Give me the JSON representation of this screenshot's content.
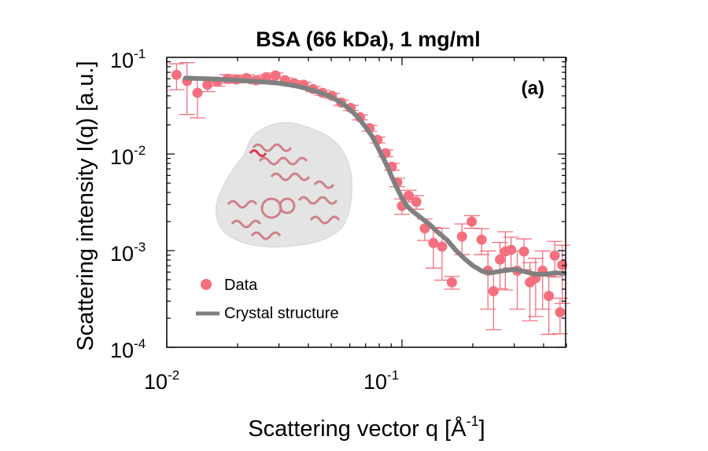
{
  "chart_data": {
    "type": "scatter",
    "title": "BSA (66 kDa), 1 mg/ml",
    "panel_label": "(a)",
    "xlabel": "Scattering vector q [Å",
    "xlabel_sup": "-1",
    "xlabel_end": "]",
    "ylabel": "Scattering intensity I(q) [a.u.]",
    "xscale": "log",
    "yscale": "log",
    "xlim": [
      0.01,
      0.5
    ],
    "ylim": [
      0.0001,
      0.1
    ],
    "xticks": [
      {
        "base": "10",
        "exp": "-2",
        "value": 0.01
      },
      {
        "base": "10",
        "exp": "-1",
        "value": 0.1
      }
    ],
    "yticks": [
      {
        "base": "10",
        "exp": "-1",
        "value": 0.1
      },
      {
        "base": "10",
        "exp": "-2",
        "value": 0.01
      },
      {
        "base": "10",
        "exp": "-3",
        "value": 0.001
      },
      {
        "base": "10",
        "exp": "-4",
        "value": 0.0001
      }
    ],
    "grid": false,
    "legend": {
      "placement": "lower-left",
      "entries": [
        {
          "label": "Data",
          "marker": "circle",
          "color": "#f4707e"
        },
        {
          "label": "Crystal structure",
          "marker": "line",
          "color": "#808080"
        }
      ]
    },
    "inset": "BSA crystal structure (ribbon) within SAXS envelope",
    "series": [
      {
        "name": "Data",
        "color": "#f4707e",
        "points": [
          {
            "q": 0.011,
            "I": 0.066,
            "err": 0.3
          },
          {
            "q": 0.0122,
            "I": 0.057,
            "err": 0.55
          },
          {
            "q": 0.0135,
            "I": 0.043,
            "err": 0.45
          },
          {
            "q": 0.0149,
            "I": 0.052,
            "err": 0.15
          },
          {
            "q": 0.0164,
            "I": 0.056,
            "err": 0.1
          },
          {
            "q": 0.0181,
            "I": 0.06,
            "err": 0.1
          },
          {
            "q": 0.0198,
            "I": 0.059,
            "err": 0.08
          },
          {
            "q": 0.0218,
            "I": 0.061,
            "err": 0.08
          },
          {
            "q": 0.024,
            "I": 0.058,
            "err": 0.08
          },
          {
            "q": 0.0264,
            "I": 0.062,
            "err": 0.06
          },
          {
            "q": 0.029,
            "I": 0.065,
            "err": 0.06
          },
          {
            "q": 0.0318,
            "I": 0.058,
            "err": 0.06
          },
          {
            "q": 0.0348,
            "I": 0.054,
            "err": 0.06
          },
          {
            "q": 0.0382,
            "I": 0.052,
            "err": 0.06
          },
          {
            "q": 0.0419,
            "I": 0.047,
            "err": 0.06
          },
          {
            "q": 0.0459,
            "I": 0.043,
            "err": 0.06
          },
          {
            "q": 0.0504,
            "I": 0.04,
            "err": 0.06
          },
          {
            "q": 0.0552,
            "I": 0.034,
            "err": 0.06
          },
          {
            "q": 0.0605,
            "I": 0.03,
            "err": 0.06
          },
          {
            "q": 0.0663,
            "I": 0.024,
            "err": 0.06
          },
          {
            "q": 0.0727,
            "I": 0.0185,
            "err": 0.07
          },
          {
            "q": 0.0787,
            "I": 0.014,
            "err": 0.07
          },
          {
            "q": 0.0851,
            "I": 0.0102,
            "err": 0.08
          },
          {
            "q": 0.0905,
            "I": 0.0074,
            "err": 0.08
          },
          {
            "q": 0.0954,
            "I": 0.0051,
            "err": 0.1
          },
          {
            "q": 0.1,
            "I": 0.0029,
            "err": 0.18
          },
          {
            "q": 0.1068,
            "I": 0.0037,
            "err": 0.14
          },
          {
            "q": 0.115,
            "I": 0.0032,
            "err": 0.16
          },
          {
            "q": 0.125,
            "I": 0.0017,
            "err": 0.25
          },
          {
            "q": 0.136,
            "I": 0.0012,
            "err": 0.45
          },
          {
            "q": 0.148,
            "I": 0.0011,
            "err": 0.55
          },
          {
            "q": 0.163,
            "I": 0.00047,
            "err": 0.15
          },
          {
            "q": 0.18,
            "I": 0.0014,
            "err": 0.35
          },
          {
            "q": 0.198,
            "I": 0.002,
            "err": 0.15
          },
          {
            "q": 0.218,
            "I": 0.0013,
            "err": 0.3
          },
          {
            "q": 0.232,
            "I": 0.00062,
            "err": 0.6
          },
          {
            "q": 0.245,
            "I": 0.00038,
            "err": 0.6
          },
          {
            "q": 0.261,
            "I": 0.00081,
            "err": 0.5
          },
          {
            "q": 0.275,
            "I": 0.00098,
            "err": 0.6
          },
          {
            "q": 0.291,
            "I": 0.00102,
            "err": 0.35
          },
          {
            "q": 0.309,
            "I": 0.00062,
            "err": 0.6
          },
          {
            "q": 0.33,
            "I": 0.00098,
            "err": 0.35
          },
          {
            "q": 0.35,
            "I": 0.00047,
            "err": 0.6
          },
          {
            "q": 0.37,
            "I": 0.00052,
            "err": 0.6
          },
          {
            "q": 0.396,
            "I": 0.00062,
            "err": 0.6
          },
          {
            "q": 0.421,
            "I": 0.00034,
            "err": 0.6
          },
          {
            "q": 0.446,
            "I": 0.00089,
            "err": 0.4
          },
          {
            "q": 0.47,
            "I": 0.00023,
            "err": 0.4
          },
          {
            "q": 0.48,
            "I": 0.00071,
            "err": 0.6
          }
        ]
      },
      {
        "name": "Crystal structure",
        "color": "#808080",
        "points": [
          {
            "q": 0.012,
            "I": 0.061
          },
          {
            "q": 0.015,
            "I": 0.06
          },
          {
            "q": 0.02,
            "I": 0.058
          },
          {
            "q": 0.025,
            "I": 0.056
          },
          {
            "q": 0.03,
            "I": 0.054
          },
          {
            "q": 0.035,
            "I": 0.051
          },
          {
            "q": 0.04,
            "I": 0.047
          },
          {
            "q": 0.045,
            "I": 0.043
          },
          {
            "q": 0.05,
            "I": 0.039
          },
          {
            "q": 0.055,
            "I": 0.034
          },
          {
            "q": 0.06,
            "I": 0.029
          },
          {
            "q": 0.065,
            "I": 0.024
          },
          {
            "q": 0.07,
            "I": 0.019
          },
          {
            "q": 0.075,
            "I": 0.015
          },
          {
            "q": 0.08,
            "I": 0.011
          },
          {
            "q": 0.085,
            "I": 0.0082
          },
          {
            "q": 0.09,
            "I": 0.006
          },
          {
            "q": 0.095,
            "I": 0.0045
          },
          {
            "q": 0.1,
            "I": 0.0035
          },
          {
            "q": 0.105,
            "I": 0.0029
          },
          {
            "q": 0.11,
            "I": 0.0026
          },
          {
            "q": 0.12,
            "I": 0.0022
          },
          {
            "q": 0.13,
            "I": 0.0019
          },
          {
            "q": 0.14,
            "I": 0.0016
          },
          {
            "q": 0.155,
            "I": 0.0013
          },
          {
            "q": 0.17,
            "I": 0.001
          },
          {
            "q": 0.185,
            "I": 0.00082
          },
          {
            "q": 0.2,
            "I": 0.0007
          },
          {
            "q": 0.22,
            "I": 0.00061
          },
          {
            "q": 0.24,
            "I": 0.00059
          },
          {
            "q": 0.27,
            "I": 0.00062
          },
          {
            "q": 0.3,
            "I": 0.00064
          },
          {
            "q": 0.33,
            "I": 0.00061
          },
          {
            "q": 0.37,
            "I": 0.00057
          },
          {
            "q": 0.41,
            "I": 0.00057
          },
          {
            "q": 0.45,
            "I": 0.00059
          },
          {
            "q": 0.49,
            "I": 0.00058
          }
        ]
      }
    ]
  }
}
